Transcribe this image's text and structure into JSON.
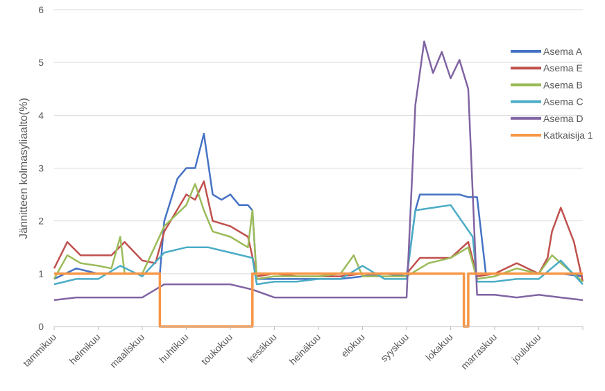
{
  "chart_data": {
    "type": "line",
    "title": "",
    "xlabel": "",
    "ylabel": "Jännitteen kolmasyliaalto(%)",
    "ylim": [
      0,
      6
    ],
    "yticks": [
      "0",
      "1",
      "2",
      "3",
      "4",
      "5",
      "6"
    ],
    "categories": [
      "tammikuu",
      "helmikuu",
      "maaliskuu",
      "huhtikuu",
      "toukokuu",
      "kesäkuu",
      "heinäkuu",
      "elokuu",
      "syyskuu",
      "lokakuu",
      "marraskuu",
      "joulukuu"
    ],
    "grid": true,
    "legend_position": "top-right",
    "series": [
      {
        "name": "Asema A",
        "color": "#4472c4",
        "x": [
          0,
          0.5,
          1,
          1.5,
          2,
          2.4,
          2.5,
          2.8,
          3,
          3.2,
          3.4,
          3.6,
          3.8,
          4,
          4.2,
          4.4,
          4.5,
          4.6,
          5,
          5.5,
          6,
          6.5,
          7,
          7.5,
          8,
          8.2,
          8.3,
          8.5,
          8.8,
          9,
          9.2,
          9.4,
          9.6,
          9.8,
          10,
          10.5,
          11,
          11.5,
          12
        ],
        "y": [
          0.9,
          1.1,
          1.0,
          1.0,
          1.0,
          1.0,
          2.0,
          2.8,
          3.0,
          3.0,
          3.65,
          2.5,
          2.4,
          2.5,
          2.3,
          2.3,
          2.2,
          0.9,
          0.9,
          0.9,
          0.9,
          0.9,
          0.95,
          1.0,
          0.95,
          2.2,
          2.5,
          2.5,
          2.5,
          2.5,
          2.5,
          2.45,
          2.45,
          1.0,
          1.0,
          1.0,
          1.0,
          1.0,
          0.95
        ]
      },
      {
        "name": "Asema E",
        "color": "#c0504d",
        "x": [
          0,
          0.3,
          0.6,
          1,
          1.3,
          1.6,
          2,
          2.3,
          2.5,
          3,
          3.2,
          3.4,
          3.6,
          4,
          4.4,
          4.6,
          5,
          5.5,
          6,
          6.5,
          7,
          7.5,
          8,
          8.3,
          9,
          9.4,
          9.6,
          10,
          10.5,
          11,
          11.2,
          11.3,
          11.5,
          11.8,
          12
        ],
        "y": [
          1.1,
          1.6,
          1.35,
          1.35,
          1.35,
          1.6,
          1.25,
          1.2,
          1.8,
          2.5,
          2.4,
          2.75,
          2.0,
          1.9,
          1.7,
          0.95,
          1.0,
          0.95,
          0.95,
          0.95,
          1.0,
          1.0,
          1.0,
          1.3,
          1.3,
          1.6,
          0.95,
          1.0,
          1.2,
          1.0,
          1.3,
          1.8,
          2.25,
          1.6,
          0.85
        ]
      },
      {
        "name": "Asema B",
        "color": "#9bbb59",
        "x": [
          0,
          0.3,
          0.6,
          1,
          1.3,
          1.5,
          1.6,
          2,
          2.5,
          3,
          3.2,
          3.4,
          3.6,
          4,
          4.4,
          4.5,
          4.6,
          5,
          5.5,
          6,
          6.5,
          6.8,
          7,
          7.5,
          8,
          8.5,
          9,
          9.4,
          9.6,
          10,
          10.5,
          11,
          11.3,
          11.5,
          12
        ],
        "y": [
          0.9,
          1.35,
          1.2,
          1.15,
          1.1,
          1.7,
          1.0,
          1.0,
          1.9,
          2.3,
          2.7,
          2.2,
          1.8,
          1.7,
          1.5,
          2.2,
          0.9,
          0.95,
          0.95,
          0.95,
          1.0,
          1.35,
          0.95,
          0.95,
          0.95,
          1.2,
          1.3,
          1.5,
          0.9,
          0.95,
          1.1,
          1.0,
          1.35,
          1.2,
          0.85
        ]
      },
      {
        "name": "Asema C",
        "color": "#4bacc6",
        "x": [
          0,
          0.5,
          1,
          1.5,
          2,
          2.5,
          3,
          3.5,
          4,
          4.5,
          4.6,
          5,
          5.5,
          6,
          6.5,
          7,
          7.5,
          8,
          8.2,
          9,
          9.5,
          9.6,
          10,
          10.5,
          11,
          11.5,
          12
        ],
        "y": [
          0.8,
          0.9,
          0.9,
          1.15,
          0.95,
          1.4,
          1.5,
          1.5,
          1.4,
          1.3,
          0.8,
          0.85,
          0.85,
          0.9,
          0.9,
          1.15,
          0.9,
          0.9,
          2.2,
          2.3,
          1.7,
          0.85,
          0.85,
          0.9,
          0.9,
          1.25,
          0.8
        ]
      },
      {
        "name": "Asema D",
        "color": "#8064a2",
        "x": [
          0,
          0.5,
          1,
          1.3,
          1.5,
          2,
          2.5,
          3,
          3.5,
          4,
          4.5,
          5,
          5.5,
          6,
          6.5,
          7,
          7.5,
          8,
          8.2,
          8.4,
          8.6,
          8.8,
          9,
          9.2,
          9.4,
          9.6,
          9.8,
          10,
          10.5,
          11,
          11.5,
          12
        ],
        "y": [
          0.5,
          0.55,
          0.55,
          0.55,
          0.55,
          0.55,
          0.8,
          0.8,
          0.8,
          0.8,
          0.7,
          0.55,
          0.55,
          0.55,
          0.55,
          0.55,
          0.55,
          0.55,
          4.2,
          5.4,
          4.8,
          5.2,
          4.7,
          5.05,
          4.5,
          0.6,
          0.6,
          0.6,
          0.55,
          0.6,
          0.55,
          0.5
        ]
      },
      {
        "name": "Katkaisija 1",
        "color": "#f79646",
        "x": [
          0,
          2.4,
          2.4,
          4.5,
          4.5,
          8.1,
          8.1,
          9.3,
          9.3,
          9.4,
          9.4,
          12
        ],
        "y": [
          1,
          1,
          0,
          0,
          1,
          1,
          1,
          1,
          0,
          0,
          1,
          1
        ]
      }
    ]
  }
}
